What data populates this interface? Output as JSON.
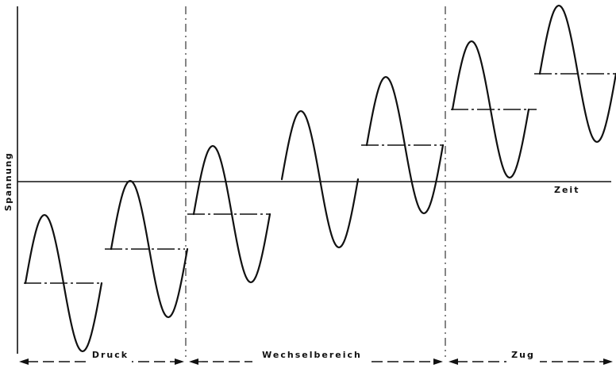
{
  "labels": {
    "y_axis": "Spannung",
    "x_axis": "Zeit"
  },
  "regions": [
    {
      "key": "druck",
      "label": "Druck"
    },
    {
      "key": "wechsel",
      "label": "Wechselbereich"
    },
    {
      "key": "zug",
      "label": "Zug"
    }
  ],
  "cycles": [
    {
      "region": "druck"
    },
    {
      "region": "druck"
    },
    {
      "region": "wechsel"
    },
    {
      "region": "wechsel"
    },
    {
      "region": "wechsel"
    },
    {
      "region": "zug"
    },
    {
      "region": "zug"
    }
  ]
}
